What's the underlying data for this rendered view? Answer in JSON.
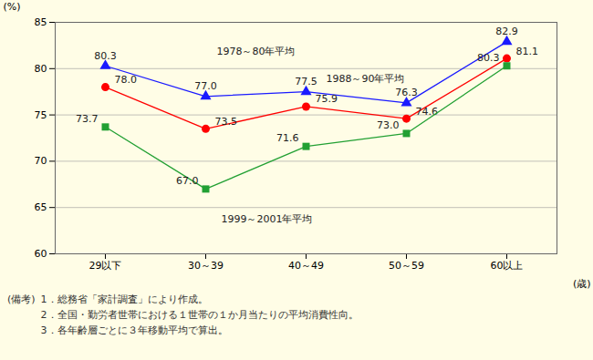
{
  "chart_data": {
    "type": "line",
    "y_label": "(%)",
    "x_label": "(歳)",
    "categories": [
      "29以下",
      "30～39",
      "40～49",
      "50～59",
      "60以上"
    ],
    "series": [
      {
        "name": "1978～80年平均",
        "color": "#1a1aff",
        "marker": "triangle",
        "values": [
          80.3,
          77.0,
          77.5,
          76.3,
          82.9
        ],
        "value_labels": [
          "80.3",
          "77.0",
          "77.5",
          "76.3",
          "82.9"
        ]
      },
      {
        "name": "1988～90年平均",
        "color": "#ff0000",
        "marker": "circle",
        "values": [
          78.0,
          73.5,
          75.9,
          74.6,
          81.1
        ],
        "value_labels": [
          "78.0",
          "73.5",
          "75.9",
          "74.6",
          "81.1"
        ]
      },
      {
        "name": "1999～2001年平均",
        "color": "#22a033",
        "marker": "square",
        "values": [
          73.7,
          67.0,
          71.6,
          73.0,
          80.3
        ],
        "value_labels": [
          "73.7",
          "67.0",
          "71.6",
          "73.0",
          "80.3"
        ]
      }
    ],
    "ylim": [
      60,
      85
    ],
    "yticks": [
      60,
      65,
      70,
      75,
      80,
      85
    ],
    "grid": true,
    "data_labels": true,
    "notes_head": "(備考)",
    "notes": [
      "1．総務省「家計調査」により作成。",
      "2．全国・勤労者世帯における１世帯の１か月当たりの平均消費性向。",
      "3．各年齢層ごとに３年移動平均で算出。"
    ]
  }
}
